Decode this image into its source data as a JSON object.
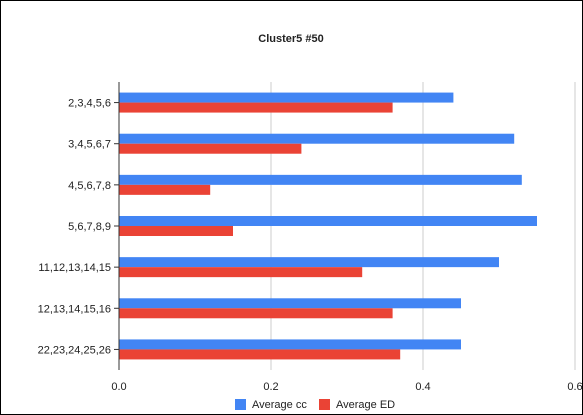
{
  "chart_data": {
    "type": "bar",
    "orientation": "horizontal",
    "title": "Cluster5 #50",
    "categories": [
      "2,3,4,5,6",
      "3,4,5,6,7",
      "4,5,6,7,8",
      "5,6,7,8,9",
      "11,12,13,14,15",
      "12,13,14,15,16",
      "22,23,24,25,26"
    ],
    "series": [
      {
        "name": "Average cc",
        "color": "#4285f4",
        "values": [
          0.44,
          0.52,
          0.53,
          0.55,
          0.5,
          0.45,
          0.45
        ]
      },
      {
        "name": "Average ED",
        "color": "#ea4335",
        "values": [
          0.36,
          0.24,
          0.12,
          0.15,
          0.32,
          0.36,
          0.37
        ]
      }
    ],
    "xlim": [
      0,
      0.6
    ],
    "x_ticks": [
      "0.0",
      "0.2",
      "0.4",
      "0.6"
    ],
    "grid": true,
    "legend_position": "bottom"
  }
}
